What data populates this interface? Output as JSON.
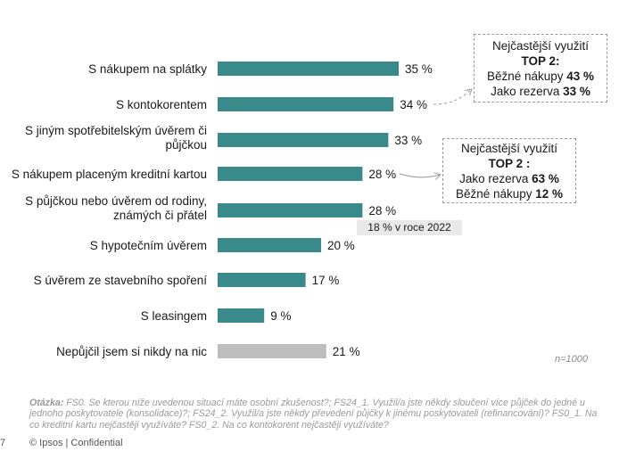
{
  "chart_data": {
    "type": "bar",
    "orientation": "horizontal",
    "categories": [
      [
        "S nákupem na splátky"
      ],
      [
        "S kontokorentem"
      ],
      [
        "S jiným spotřebitelským úvěrem či",
        "půjčkou"
      ],
      [
        "S nákupem placeným kreditní kartou"
      ],
      [
        "S půjčkou nebo úvěrem od rodiny,",
        "známých či přátel"
      ],
      [
        "S hypotečním úvěrem"
      ],
      [
        "S úvěrem ze stavebního spoření"
      ],
      [
        "S leasingem"
      ],
      [
        "Nepůjčil jsem si nikdy na nic"
      ]
    ],
    "values": [
      35,
      34,
      33,
      28,
      28,
      20,
      17,
      9,
      21
    ],
    "value_labels": [
      "35 %",
      "34 %",
      "33 %",
      "28 %",
      "28 %",
      "20 %",
      "17 %",
      "9 %",
      "21 %"
    ],
    "bar_colors": [
      "#3a8a8c",
      "#3a8a8c",
      "#3a8a8c",
      "#3a8a8c",
      "#3a8a8c",
      "#3a8a8c",
      "#3a8a8c",
      "#3a8a8c",
      "#bdbdbd"
    ],
    "xlim": [
      0,
      100
    ],
    "grid": false,
    "legend": "none"
  },
  "callout_kontokorent": {
    "heading": "Nejčastější využití",
    "top": "TOP 2:",
    "line1_text": "Běžné nákupy ",
    "line1_value": "43 %",
    "line2_text": "Jako rezerva ",
    "line2_value": "33 %"
  },
  "callout_kreditni_karta": {
    "heading": "Nejčastější využití",
    "top": "TOP 2 :",
    "line1_text": "Jako rezerva ",
    "line1_value": "63 %",
    "line2_text": "Běžné nákupy ",
    "line2_value": "12 %"
  },
  "note_2022": "18 % v roce 2022",
  "sample_size": "n=1000",
  "question_label": "Otázka:",
  "question_text": " FS0. Se kterou níže uvedenou situací máte osobní zkušenost?; FS24_1. Využil/a jste někdy sloučení více půjček do jedné u jednoho poskytovatele (konsolidace)?; FS24_2. Využil/a jste někdy převedení půjčky k jinému poskytovateli (refinancování)? FS0_1. Na co kreditní kartu nejčastěji využíváte? FS0_2. Na co kontokorent nejčastěji využíváte?",
  "page_number": "7",
  "copyright": "© Ipsos | Confidential",
  "colors": {
    "bar": "#3a8a8c",
    "bar_gray": "#bdbdbd",
    "callout_border": "#9a9a9a"
  }
}
